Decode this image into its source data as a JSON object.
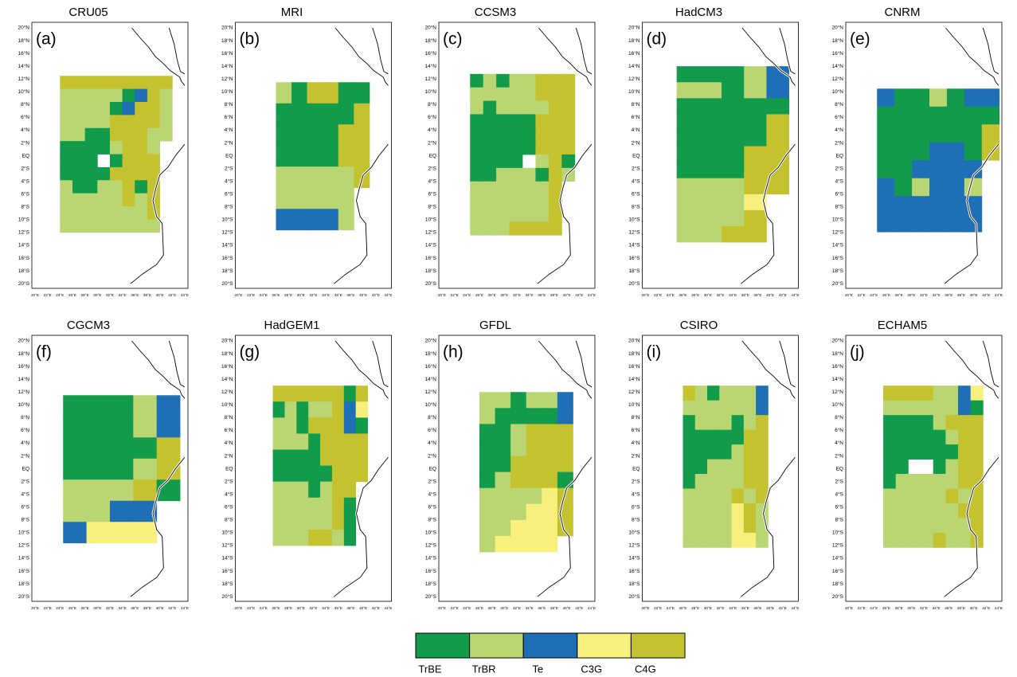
{
  "panels": [
    {
      "title": "CRU05",
      "label": "(a)"
    },
    {
      "title": "MRI",
      "label": "(b)"
    },
    {
      "title": "CCSM3",
      "label": "(c)"
    },
    {
      "title": "HadCM3",
      "label": "(d)"
    },
    {
      "title": "CNRM",
      "label": "(e)"
    },
    {
      "title": "CGCM3",
      "label": "(f)"
    },
    {
      "title": "HadGEM1",
      "label": "(g)"
    },
    {
      "title": "GFDL",
      "label": "(h)"
    },
    {
      "title": "CSIRO",
      "label": "(i)"
    },
    {
      "title": "ECHAM5",
      "label": "(j)"
    }
  ],
  "lat_labels": [
    "20°N",
    "18°N",
    "16°N",
    "14°N",
    "12°N",
    "10°N",
    "8°N",
    "6°N",
    "4°N",
    "2°N",
    "EQ",
    "2°S",
    "4°S",
    "6°S",
    "8°S",
    "10°S",
    "12°S",
    "14°S",
    "16°S",
    "18°S",
    "20°S"
  ],
  "lon_labels": [
    "20°E",
    "22°E",
    "24°E",
    "26°E",
    "28°E",
    "30°E",
    "32°E",
    "34°E",
    "36°E",
    "38°E",
    "40°E",
    "42°E",
    "44°E"
  ],
  "legend": [
    {
      "name": "TrBE",
      "color": "#119b4b"
    },
    {
      "name": "TrBR",
      "color": "#bad673"
    },
    {
      "name": "Te",
      "color": "#1e6fb6"
    },
    {
      "name": "C3G",
      "color": "#f8f07c"
    },
    {
      "name": "C4G",
      "color": "#c4c22f"
    }
  ]
}
